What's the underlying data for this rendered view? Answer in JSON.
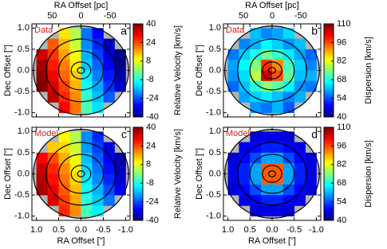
{
  "chart_data": [
    {
      "type": "heatmap",
      "panel": "a",
      "label": "Data",
      "x2label": "RA Offset [pc]",
      "ylabel": "Dec Offset [\"]",
      "colorbar_label": "Relative Velocity [km/s]",
      "xlim": [
        1.1,
        -1.1
      ],
      "ylim": [
        -1.1,
        1.1
      ],
      "x2lim": [
        85,
        -85
      ],
      "xticks": [
        {
          "value": 1,
          "label": "1.0"
        },
        0.5,
        {
          "value": 0,
          "label": "0.0"
        },
        -0.5,
        {
          "value": -1,
          "label": "-1.0"
        }
      ],
      "yticks": [
        {
          "value": 1,
          "label": "1.0"
        },
        0.5,
        {
          "value": 0,
          "label": "0.0"
        },
        -0.5,
        {
          "value": -1,
          "label": "-1.0"
        }
      ],
      "x2ticks": [
        50,
        0,
        -50
      ],
      "clim": [
        -40,
        40
      ],
      "cticks": [
        40,
        24,
        8,
        -8,
        -24,
        -40
      ],
      "x": [
        0.875,
        0.625,
        0.375,
        0.125,
        -0.125,
        -0.375,
        -0.625,
        -0.875
      ],
      "y": [
        0.875,
        0.625,
        0.375,
        0.125,
        -0.125,
        -0.375,
        -0.625,
        -0.875
      ],
      "values": [
        [
          null,
          null,
          12,
          4,
          -21,
          -30,
          null,
          null
        ],
        [
          null,
          23,
          15,
          6,
          -19,
          -27,
          -36,
          null
        ],
        [
          34,
          26,
          17,
          9,
          -16,
          -25,
          -33,
          -40
        ],
        [
          37,
          28,
          20,
          11,
          -14,
          -22,
          -31,
          -39
        ],
        [
          39,
          31,
          22,
          14,
          -11,
          -20,
          -28,
          -37
        ],
        [
          40,
          33,
          25,
          16,
          -9,
          -17,
          -26,
          -34
        ],
        [
          null,
          36,
          27,
          19,
          -6,
          -15,
          -23,
          null
        ],
        [
          null,
          null,
          30,
          21,
          -4,
          -12,
          null,
          null
        ]
      ]
    },
    {
      "type": "heatmap",
      "panel": "b",
      "label": "Data",
      "x2label": "RA Offset [pc]",
      "ylabel": "Dec Offset [\"]",
      "colorbar_label": "Dispersion [km/s]",
      "xlim": [
        1.1,
        -1.1
      ],
      "ylim": [
        -1.1,
        1.1
      ],
      "x2lim": [
        85,
        -85
      ],
      "xticks": [
        {
          "value": 1,
          "label": "1.0"
        },
        0.5,
        {
          "value": 0,
          "label": "0.0"
        },
        -0.5,
        {
          "value": -1,
          "label": "-1.0"
        }
      ],
      "yticks": [
        {
          "value": 1,
          "label": "1.0"
        },
        0.5,
        {
          "value": 0,
          "label": "0.0"
        },
        -0.5,
        {
          "value": -1,
          "label": "-1.0"
        }
      ],
      "x2ticks": [
        50,
        0,
        -50
      ],
      "clim": [
        40,
        110
      ],
      "cticks": [
        110,
        96,
        82,
        68,
        54,
        40
      ],
      "x": [
        0.875,
        0.625,
        0.375,
        0.125,
        -0.125,
        -0.375,
        -0.625,
        -0.875
      ],
      "y": [
        0.875,
        0.625,
        0.375,
        0.125,
        -0.125,
        -0.375,
        -0.625,
        -0.875
      ],
      "values": [
        [
          null,
          null,
          62,
          58,
          60,
          64,
          null,
          null
        ],
        [
          null,
          58,
          61,
          66,
          63,
          59,
          62,
          null
        ],
        [
          57,
          63,
          68,
          74,
          70,
          65,
          60,
          56
        ],
        [
          60,
          66,
          75,
          98,
          92,
          71,
          63,
          58
        ],
        [
          59,
          64,
          79,
          104,
          96,
          73,
          62,
          61
        ],
        [
          56,
          62,
          69,
          76,
          72,
          66,
          59,
          57
        ],
        [
          null,
          60,
          63,
          65,
          62,
          58,
          61,
          null
        ],
        [
          null,
          null,
          59,
          57,
          61,
          55,
          null,
          null
        ]
      ]
    },
    {
      "type": "heatmap",
      "panel": "c",
      "label": "Model",
      "xlabel": "RA Offset [\"]",
      "ylabel": "Dec Offset [\"]",
      "colorbar_label": "Relative Velocity [km/s]",
      "xlim": [
        1.1,
        -1.1
      ],
      "ylim": [
        -1.1,
        1.1
      ],
      "xticks": [
        {
          "value": 1,
          "label": "1.0"
        },
        0.5,
        {
          "value": 0,
          "label": "0.0"
        },
        -0.5,
        {
          "value": -1,
          "label": "-1.0"
        }
      ],
      "yticks": [
        {
          "value": 1,
          "label": "1.0"
        },
        0.5,
        {
          "value": 0,
          "label": "0.0"
        },
        -0.5,
        {
          "value": -1,
          "label": "-1.0"
        }
      ],
      "clim": [
        -40,
        40
      ],
      "cticks": [
        40,
        24,
        8,
        -8,
        -24,
        -40
      ],
      "x": [
        0.875,
        0.625,
        0.375,
        0.125,
        -0.125,
        -0.375,
        -0.625,
        -0.875
      ],
      "y": [
        0.875,
        0.625,
        0.375,
        0.125,
        -0.125,
        -0.375,
        -0.625,
        -0.875
      ],
      "values": [
        [
          null,
          null,
          10,
          4,
          -19,
          -27,
          null,
          null
        ],
        [
          null,
          14,
          13,
          6,
          -18,
          -25,
          -33,
          null
        ],
        [
          30,
          24,
          16,
          9,
          -15,
          -23,
          -31,
          -37
        ],
        [
          34,
          27,
          19,
          11,
          -13,
          -21,
          -29,
          -36
        ],
        [
          36,
          29,
          21,
          13,
          -11,
          -19,
          -27,
          -34
        ],
        [
          37,
          31,
          23,
          15,
          -9,
          -16,
          -24,
          -31
        ],
        [
          null,
          33,
          25,
          17,
          -7,
          -14,
          -21,
          null
        ],
        [
          null,
          null,
          27,
          19,
          -5,
          -11,
          null,
          null
        ]
      ]
    },
    {
      "type": "heatmap",
      "panel": "d",
      "label": "Model",
      "xlabel": "RA Offset [\"]",
      "ylabel": "Dec Offset [\"]",
      "colorbar_label": "Dispersion [km/s]",
      "xlim": [
        1.1,
        -1.1
      ],
      "ylim": [
        -1.1,
        1.1
      ],
      "xticks": [
        {
          "value": 1,
          "label": "1.0"
        },
        0.5,
        {
          "value": 0,
          "label": "0.0"
        },
        -0.5,
        {
          "value": -1,
          "label": "-1.0"
        }
      ],
      "yticks": [
        {
          "value": 1,
          "label": "1.0"
        },
        0.5,
        {
          "value": 0,
          "label": "0.0"
        },
        -0.5,
        {
          "value": -1,
          "label": "-1.0"
        }
      ],
      "clim": [
        40,
        110
      ],
      "cticks": [
        110,
        96,
        82,
        68,
        54,
        40
      ],
      "x": [
        0.875,
        0.625,
        0.375,
        0.125,
        -0.125,
        -0.375,
        -0.625,
        -0.875
      ],
      "y": [
        0.875,
        0.625,
        0.375,
        0.125,
        -0.125,
        -0.375,
        -0.625,
        -0.875
      ],
      "values": [
        [
          null,
          null,
          46,
          47,
          47,
          46,
          null,
          null
        ],
        [
          null,
          47,
          49,
          51,
          51,
          49,
          47,
          null
        ],
        [
          46,
          49,
          54,
          60,
          60,
          54,
          49,
          46
        ],
        [
          47,
          51,
          60,
          95,
          95,
          60,
          51,
          47
        ],
        [
          47,
          51,
          60,
          95,
          95,
          60,
          51,
          47
        ],
        [
          46,
          49,
          54,
          60,
          60,
          54,
          49,
          46
        ],
        [
          null,
          47,
          49,
          51,
          51,
          49,
          47,
          null
        ],
        [
          null,
          null,
          46,
          47,
          47,
          46,
          null,
          null
        ]
      ]
    }
  ]
}
